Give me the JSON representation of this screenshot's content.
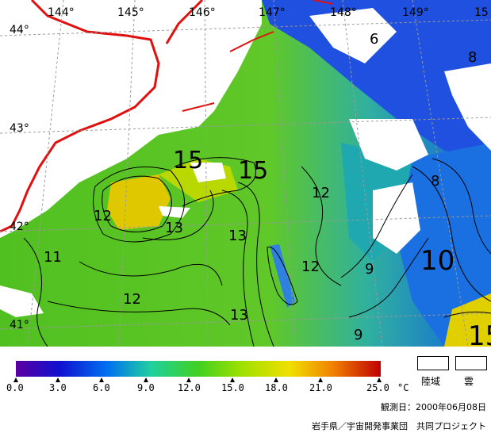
{
  "map": {
    "longitude_labels": [
      "144°",
      "145°",
      "146°",
      "147°",
      "148°",
      "149°",
      "15"
    ],
    "latitude_labels": [
      "44°",
      "43°",
      "42°",
      "41°"
    ],
    "contour_labels": [
      "15",
      "15",
      "12",
      "13",
      "12",
      "13",
      "11",
      "12",
      "13",
      "12",
      "9",
      "8",
      "10",
      "9",
      "8",
      "6",
      "15"
    ],
    "colors": {
      "land_outline": "#e01010",
      "cloud": "#ffffff",
      "contour": "#000000"
    }
  },
  "colorbar": {
    "tick_labels": [
      "0.0",
      "3.0",
      "6.0",
      "9.0",
      "12.0",
      "15.0",
      "18.0",
      "21.0",
      "25.0"
    ],
    "unit": "°C",
    "gradient": [
      "#5a00a0",
      "#1010d0",
      "#0070f0",
      "#20d0a0",
      "#40d020",
      "#a0e000",
      "#f0e000",
      "#f08000",
      "#c00000"
    ]
  },
  "legend": {
    "land_label": "陸域",
    "cloud_label": "雲"
  },
  "footer": {
    "observation_date": "観測日：2000年06月08日",
    "credit": "岩手県／宇宙開発事業団　共同プロジェクト"
  }
}
